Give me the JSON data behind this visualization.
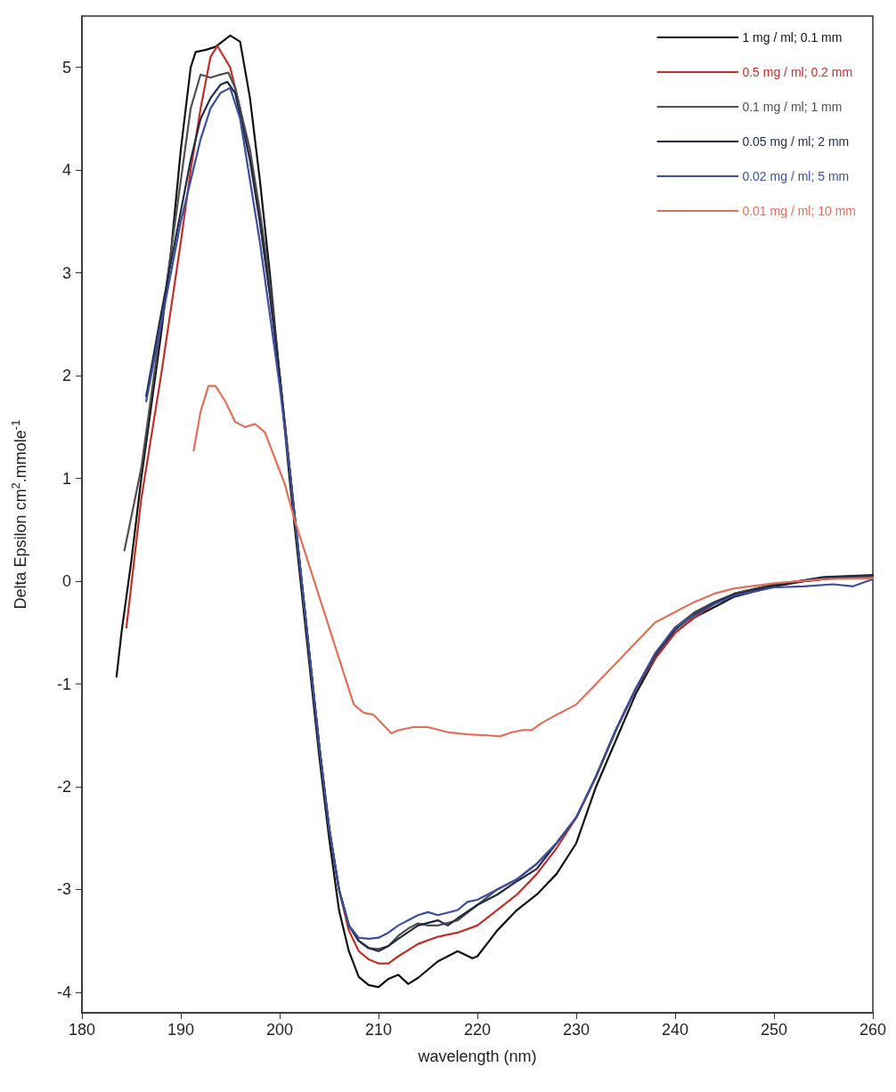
{
  "chart_data": {
    "type": "line",
    "xlabel": "wavelength (nm)",
    "ylabel": "Delta Epsilon cm$^{2}$.mmole$^{-1}$",
    "xlim": [
      180,
      260
    ],
    "xticks": [
      180,
      190,
      200,
      210,
      220,
      230,
      240,
      250,
      260
    ],
    "ylim": [
      -4.2,
      5.5
    ],
    "yticks": [
      -4,
      -3,
      -2,
      -1,
      0,
      1,
      2,
      3,
      4,
      5
    ],
    "grid": false,
    "legend": "top right",
    "marker": "none",
    "line_style": "solid",
    "series": [
      {
        "name": "1 mg / ml; 0.1 mm",
        "color": "#111111",
        "x": [
          183.5,
          184,
          185,
          186,
          187,
          188,
          189,
          190,
          191,
          191.5,
          192.5,
          193.5,
          195,
          196,
          197,
          198,
          199,
          200,
          201,
          202,
          203,
          204,
          205,
          206,
          207,
          208,
          209,
          210,
          211,
          212,
          213,
          214,
          216,
          218,
          219.5,
          220,
          222,
          224,
          226,
          228,
          230,
          232,
          234,
          236,
          238,
          240,
          242,
          244,
          246,
          248,
          250,
          253,
          256,
          260
        ],
        "values": [
          -0.93,
          -0.5,
          0.2,
          1.0,
          1.7,
          2.4,
          3.2,
          4.2,
          5.0,
          5.15,
          5.17,
          5.2,
          5.31,
          5.25,
          4.7,
          3.9,
          3.0,
          2.0,
          1.0,
          0.1,
          -0.8,
          -1.7,
          -2.5,
          -3.2,
          -3.6,
          -3.85,
          -3.93,
          -3.95,
          -3.87,
          -3.83,
          -3.92,
          -3.86,
          -3.7,
          -3.6,
          -3.67,
          -3.65,
          -3.4,
          -3.2,
          -3.05,
          -2.85,
          -2.55,
          -2.0,
          -1.55,
          -1.1,
          -0.75,
          -0.5,
          -0.35,
          -0.25,
          -0.15,
          -0.1,
          -0.05,
          0.0,
          0.03,
          0.05
        ]
      },
      {
        "name": "0.5 mg / ml; 0.2 mm",
        "color": "#c0302a",
        "x": [
          184.5,
          186,
          188,
          190,
          191,
          192,
          193,
          193.7,
          195,
          196,
          197,
          198,
          199,
          200,
          201,
          202,
          203,
          204,
          205,
          206,
          207,
          208,
          209,
          210,
          211,
          212,
          214,
          216,
          218,
          220,
          222,
          224,
          226,
          228,
          230,
          232,
          234,
          236,
          238,
          240,
          242,
          244,
          246,
          250,
          255,
          260
        ],
        "values": [
          -0.45,
          0.8,
          2.0,
          3.3,
          4.0,
          4.6,
          5.1,
          5.21,
          5.0,
          4.6,
          4.1,
          3.5,
          2.8,
          2.0,
          1.1,
          0.2,
          -0.7,
          -1.6,
          -2.4,
          -3.0,
          -3.4,
          -3.6,
          -3.68,
          -3.72,
          -3.72,
          -3.65,
          -3.53,
          -3.46,
          -3.42,
          -3.35,
          -3.2,
          -3.05,
          -2.85,
          -2.6,
          -2.3,
          -1.9,
          -1.45,
          -1.05,
          -0.75,
          -0.5,
          -0.35,
          -0.22,
          -0.12,
          -0.03,
          0.02,
          0.05
        ]
      },
      {
        "name": "0.1 mg / ml; 1 mm",
        "color": "#505050",
        "x": [
          184.3,
          186,
          188,
          190,
          191,
          192,
          193,
          194,
          194.8,
          195.5,
          197,
          198,
          199,
          200,
          201,
          202,
          203,
          204,
          205,
          206,
          207,
          208,
          209,
          210,
          211,
          212,
          213,
          214,
          215,
          216,
          218,
          220,
          222,
          224,
          226,
          228,
          230,
          232,
          234,
          236,
          238,
          240,
          242,
          244,
          246,
          250,
          255,
          260
        ],
        "values": [
          0.3,
          1.1,
          2.5,
          3.9,
          4.6,
          4.93,
          4.9,
          4.93,
          4.95,
          4.8,
          4.2,
          3.6,
          2.9,
          2.0,
          1.1,
          0.2,
          -0.7,
          -1.6,
          -2.4,
          -3.0,
          -3.35,
          -3.5,
          -3.57,
          -3.58,
          -3.55,
          -3.45,
          -3.38,
          -3.33,
          -3.35,
          -3.35,
          -3.3,
          -3.15,
          -3.0,
          -2.9,
          -2.75,
          -2.55,
          -2.3,
          -1.9,
          -1.45,
          -1.05,
          -0.7,
          -0.45,
          -0.3,
          -0.2,
          -0.12,
          -0.03,
          0.03,
          0.05
        ]
      },
      {
        "name": "0.05 mg / ml; 2 mm",
        "color": "#1f2a44",
        "x": [
          186.5,
          188,
          190,
          191,
          192,
          193,
          194,
          194.7,
          195.5,
          197,
          198,
          199,
          200,
          201,
          202,
          203,
          204,
          205,
          206,
          207,
          208,
          209,
          210,
          211,
          212,
          214,
          216,
          217,
          218,
          220,
          222,
          224,
          226,
          228,
          230,
          232,
          234,
          236,
          238,
          240,
          242,
          244,
          246,
          250,
          255,
          260
        ],
        "values": [
          1.8,
          2.6,
          3.6,
          4.1,
          4.5,
          4.7,
          4.83,
          4.86,
          4.75,
          4.1,
          3.5,
          2.8,
          2.0,
          1.1,
          0.2,
          -0.7,
          -1.6,
          -2.4,
          -3.0,
          -3.35,
          -3.5,
          -3.57,
          -3.6,
          -3.55,
          -3.48,
          -3.35,
          -3.3,
          -3.35,
          -3.28,
          -3.15,
          -3.05,
          -2.92,
          -2.8,
          -2.55,
          -2.3,
          -1.9,
          -1.45,
          -1.05,
          -0.72,
          -0.47,
          -0.32,
          -0.21,
          -0.13,
          -0.04,
          0.04,
          0.06
        ]
      },
      {
        "name": "0.02 mg / ml; 5 mm",
        "color": "#3b4f9a",
        "x": [
          186.5,
          188,
          190,
          191,
          192,
          193,
          194,
          195,
          196,
          197,
          198,
          199,
          200,
          201,
          202,
          203,
          204,
          205,
          206,
          207,
          208,
          209,
          210,
          211,
          212,
          213,
          214,
          215,
          216,
          218,
          219,
          220,
          222,
          224,
          226,
          228,
          230,
          232,
          234,
          236,
          238,
          240,
          242,
          244,
          246,
          250,
          253,
          256,
          258,
          260
        ],
        "values": [
          1.75,
          2.5,
          3.5,
          3.9,
          4.3,
          4.6,
          4.75,
          4.8,
          4.5,
          3.9,
          3.3,
          2.6,
          1.9,
          1.1,
          0.2,
          -0.7,
          -1.6,
          -2.4,
          -3.0,
          -3.35,
          -3.47,
          -3.48,
          -3.47,
          -3.42,
          -3.35,
          -3.3,
          -3.25,
          -3.22,
          -3.25,
          -3.2,
          -3.12,
          -3.1,
          -3.0,
          -2.9,
          -2.75,
          -2.55,
          -2.3,
          -1.9,
          -1.45,
          -1.05,
          -0.7,
          -0.45,
          -0.33,
          -0.22,
          -0.14,
          -0.06,
          -0.05,
          -0.03,
          -0.05,
          0.02
        ]
      },
      {
        "name": "0.01 mg / ml; 10 mm",
        "color": "#e0705a",
        "x": [
          191.3,
          192,
          192.8,
          193.5,
          194.5,
          195.5,
          196.5,
          197.5,
          198.5,
          199.5,
          200.5,
          201.5,
          202.5,
          203.5,
          204.5,
          205.5,
          206.5,
          207.5,
          208.5,
          209.5,
          210.5,
          211.3,
          212,
          213.5,
          215,
          217,
          219,
          221,
          222.3,
          223.5,
          224.5,
          225.5,
          226.5,
          228,
          230,
          232,
          234,
          236,
          238,
          240,
          242,
          244,
          246,
          250,
          255,
          260
        ],
        "values": [
          1.27,
          1.65,
          1.9,
          1.9,
          1.75,
          1.55,
          1.5,
          1.53,
          1.45,
          1.2,
          0.95,
          0.6,
          0.3,
          0.0,
          -0.3,
          -0.6,
          -0.9,
          -1.2,
          -1.28,
          -1.3,
          -1.4,
          -1.48,
          -1.45,
          -1.42,
          -1.42,
          -1.47,
          -1.49,
          -1.5,
          -1.51,
          -1.47,
          -1.45,
          -1.45,
          -1.38,
          -1.3,
          -1.2,
          -1.0,
          -0.8,
          -0.6,
          -0.4,
          -0.3,
          -0.2,
          -0.12,
          -0.07,
          -0.02,
          0.02,
          0.03
        ]
      }
    ]
  }
}
